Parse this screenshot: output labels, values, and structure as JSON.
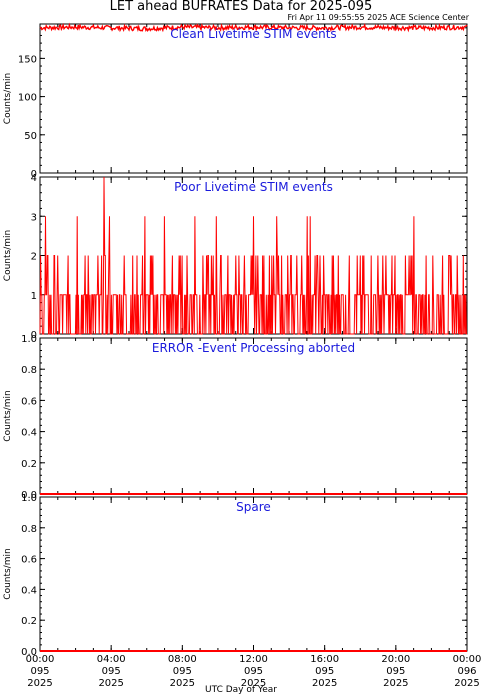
{
  "title": "LET ahead BUFRATES Data for 2025-095",
  "subtitle": "Fri Apr 11 09:55:55 2025 ACE Science Center",
  "xlabel": "UTC Day of Year",
  "colors": {
    "data": "#ff0000",
    "title": "#1a1adc",
    "axis": "#000000"
  },
  "x_ticks": [
    {
      "time": "00:00",
      "doy": "095",
      "year": "2025"
    },
    {
      "time": "04:00",
      "doy": "095",
      "year": "2025"
    },
    {
      "time": "08:00",
      "doy": "095",
      "year": "2025"
    },
    {
      "time": "12:00",
      "doy": "095",
      "year": "2025"
    },
    {
      "time": "16:00",
      "doy": "095",
      "year": "2025"
    },
    {
      "time": "20:00",
      "doy": "095",
      "year": "2025"
    },
    {
      "time": "00:00",
      "doy": "096",
      "year": "2025"
    }
  ],
  "chart_data": [
    {
      "type": "line",
      "title": "Clean Livetime STIM events",
      "ylabel": "Counts/min",
      "ylim": [
        0,
        195
      ],
      "yticks": [
        0,
        50,
        100,
        150
      ],
      "xlim_hours": [
        0,
        24
      ],
      "series": [
        {
          "x_hours": [
            0,
            2,
            4,
            6,
            8,
            10,
            12,
            14,
            16,
            18,
            20,
            22,
            24
          ],
          "values": [
            190,
            191,
            190,
            189,
            191,
            190,
            191,
            190,
            190,
            191,
            190,
            190,
            191
          ]
        }
      ]
    },
    {
      "type": "line",
      "title": "Poor Livetime STIM events",
      "ylabel": "Counts/min",
      "ylim": [
        0,
        4
      ],
      "yticks": [
        0,
        1,
        2,
        3,
        4
      ],
      "xlim_hours": [
        0,
        24
      ],
      "series": [
        {
          "spikes": [
            {
              "x_hours": 0.3,
              "value": 3
            },
            {
              "x_hours": 2.1,
              "value": 3
            },
            {
              "x_hours": 3.6,
              "value": 4
            },
            {
              "x_hours": 3.9,
              "value": 3
            },
            {
              "x_hours": 5.9,
              "value": 3
            },
            {
              "x_hours": 7.0,
              "value": 3
            },
            {
              "x_hours": 8.7,
              "value": 3
            },
            {
              "x_hours": 9.9,
              "value": 3
            },
            {
              "x_hours": 12.0,
              "value": 3
            },
            {
              "x_hours": 13.3,
              "value": 3
            },
            {
              "x_hours": 15.0,
              "value": 3
            },
            {
              "x_hours": 15.2,
              "value": 3
            },
            {
              "x_hours": 21.0,
              "value": 3
            }
          ],
          "base_level": 1,
          "frequent_level": 2
        }
      ]
    },
    {
      "type": "line",
      "title": "ERROR -Event Processing aborted",
      "ylabel": "Counts/min",
      "ylim": [
        0,
        1.0
      ],
      "yticks": [
        0.0,
        0.2,
        0.4,
        0.6,
        0.8,
        1.0
      ],
      "xlim_hours": [
        0,
        24
      ],
      "series": [
        {
          "x_hours": [
            0,
            24
          ],
          "values": [
            0,
            0
          ]
        }
      ]
    },
    {
      "type": "line",
      "title": "Spare",
      "ylabel": "Counts/min",
      "ylim": [
        0,
        1.0
      ],
      "yticks": [
        0.0,
        0.2,
        0.4,
        0.6,
        0.8,
        1.0
      ],
      "xlim_hours": [
        0,
        24
      ],
      "series": [
        {
          "x_hours": [
            0,
            24
          ],
          "values": [
            0,
            0
          ]
        }
      ]
    }
  ]
}
